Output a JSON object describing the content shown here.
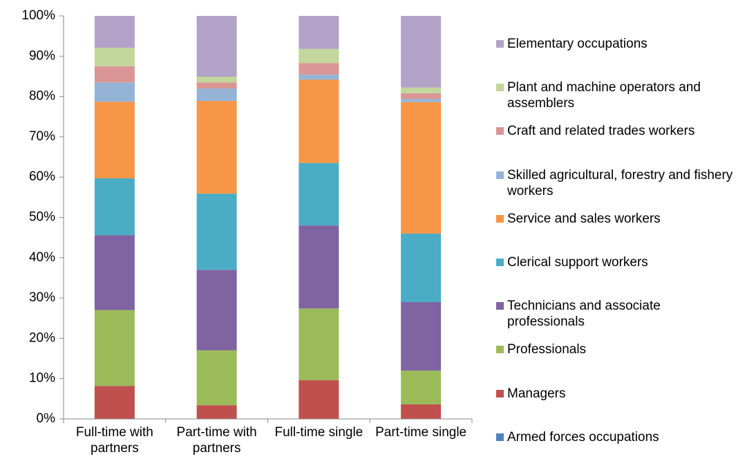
{
  "chart_data": {
    "type": "stacked_bar",
    "categories": [
      "Full-time with partners",
      "Part-time with partners",
      "Full-time single",
      "Part-time single"
    ],
    "series": [
      {
        "name": "Armed forces occupations",
        "color": "#4f81bd",
        "values": [
          0,
          0,
          0,
          0
        ]
      },
      {
        "name": "Managers",
        "color": "#c0504d",
        "values": [
          8.2,
          3.4,
          9.6,
          3.6
        ]
      },
      {
        "name": "Professionals",
        "color": "#9bbb59",
        "values": [
          18.8,
          13.6,
          17.8,
          8.4
        ]
      },
      {
        "name": "Technicians and associate professionals",
        "color": "#8064a2",
        "values": [
          18.6,
          20.0,
          20.6,
          17.0
        ]
      },
      {
        "name": "Clerical support workers",
        "color": "#4bacc6",
        "values": [
          14.1,
          18.9,
          15.5,
          17.0
        ]
      },
      {
        "name": "Service and sales workers",
        "color": "#f79646",
        "values": [
          19.0,
          23.0,
          20.7,
          32.6
        ]
      },
      {
        "name": "Skilled agricultural, forestry and fishery workers",
        "color": "#95b3d7",
        "values": [
          4.8,
          3.1,
          1.2,
          0.8
        ]
      },
      {
        "name": "Craft and related trades workers",
        "color": "#d99694",
        "values": [
          4.0,
          1.5,
          2.9,
          1.4
        ]
      },
      {
        "name": "Plant and machine operators and assemblers",
        "color": "#c3d69b",
        "values": [
          4.6,
          1.4,
          3.5,
          1.4
        ]
      },
      {
        "name": "Elementary occupations",
        "color": "#b3a2c7",
        "values": [
          7.9,
          15.1,
          8.2,
          17.8
        ]
      }
    ],
    "ylim": [
      0,
      100
    ],
    "yticks": [
      {
        "value": 0,
        "label": "0%"
      },
      {
        "value": 10,
        "label": "10%"
      },
      {
        "value": 20,
        "label": "20%"
      },
      {
        "value": 30,
        "label": "30%"
      },
      {
        "value": 40,
        "label": "40%"
      },
      {
        "value": 50,
        "label": "50%"
      },
      {
        "value": 60,
        "label": "60%"
      },
      {
        "value": 70,
        "label": "70%"
      },
      {
        "value": 80,
        "label": "80%"
      },
      {
        "value": 90,
        "label": "90%"
      },
      {
        "value": 100,
        "label": "100%"
      }
    ],
    "legend": "right"
  }
}
